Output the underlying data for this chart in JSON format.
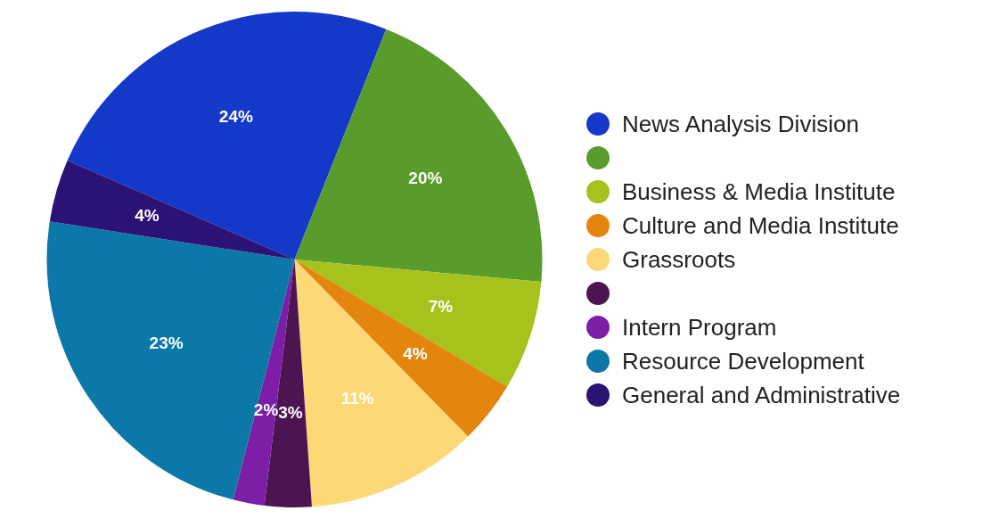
{
  "chart_data": {
    "type": "pie",
    "categories": [
      "News Analysis Division",
      null,
      "Business & Media Institute",
      "Culture and Media Institute",
      "Grassroots",
      null,
      "Intern Program",
      "Resource Development",
      "General and Administrative"
    ],
    "values": [
      24,
      20,
      7,
      4,
      11,
      3,
      2,
      23,
      4
    ],
    "colors": [
      "#1438c8",
      "#5a9c2c",
      "#a6c21c",
      "#e4860e",
      "#fdd877",
      "#4c1552",
      "#7c1ea6",
      "#0b78a8",
      "#2c1274"
    ],
    "value_labels": [
      "24%",
      "20%",
      "7%",
      "4%",
      "11%",
      "3%",
      "2%",
      "23%",
      "4%"
    ],
    "legend": "right"
  }
}
